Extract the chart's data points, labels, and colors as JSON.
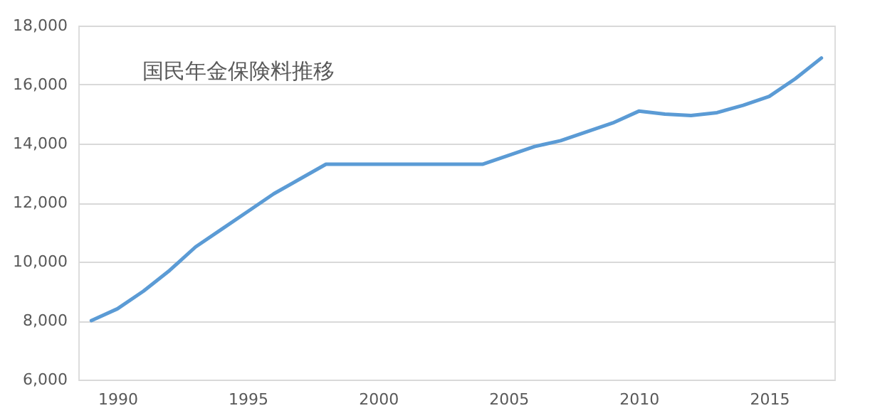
{
  "chart_data": {
    "type": "line",
    "title": "国民年金保険料推移",
    "x": [
      1989,
      1990,
      1991,
      1992,
      1993,
      1994,
      1995,
      1996,
      1997,
      1998,
      1999,
      2000,
      2001,
      2002,
      2003,
      2004,
      2005,
      2006,
      2007,
      2008,
      2009,
      2010,
      2011,
      2012,
      2013,
      2014,
      2015,
      2016,
      2017
    ],
    "series": [
      {
        "color": "#5b9bd5",
        "values": [
          8000,
          8400,
          9000,
          9700,
          10500,
          11100,
          11700,
          12300,
          12800,
          13300,
          13300,
          13300,
          13300,
          13300,
          13300,
          13300,
          13600,
          13900,
          14100,
          14400,
          14700,
          15100,
          15000,
          14950,
          15050,
          15300,
          15600,
          16200,
          16900
        ]
      }
    ],
    "xlim": [
      1988.5,
      2017.5
    ],
    "xticks": [
      1990,
      1995,
      2000,
      2005,
      2010,
      2015
    ],
    "ylim": [
      6000,
      18000
    ],
    "yticks": [
      {
        "value": 6000,
        "label": "6,000"
      },
      {
        "value": 8000,
        "label": "8,000"
      },
      {
        "value": 10000,
        "label": "10,000"
      },
      {
        "value": 12000,
        "label": "12,000"
      },
      {
        "value": 14000,
        "label": "14,000"
      },
      {
        "value": 16000,
        "label": "16,000"
      },
      {
        "value": 18000,
        "label": "18,000"
      }
    ],
    "grid": "y",
    "marker": "none",
    "line_style": "solid"
  }
}
